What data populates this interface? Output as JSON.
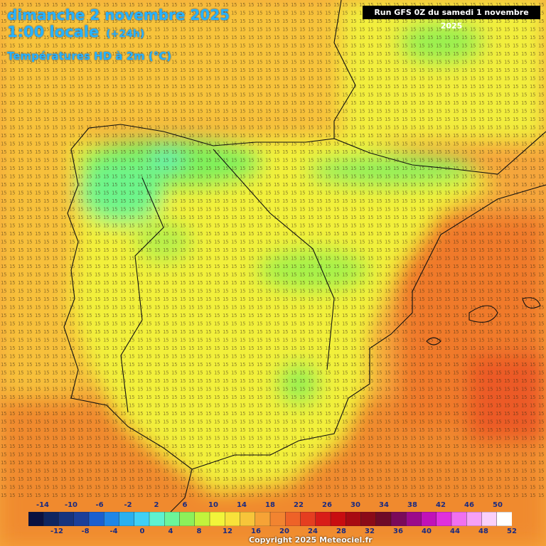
{
  "header": {
    "line1": "dimanche 2 novembre 2025",
    "line2": "1:00 locale",
    "line2_tag": "(+24h)",
    "line3": "Températures HD à 2m (°C)"
  },
  "run_info": "Run GFS 0Z du samedi 1 novembre 2025",
  "copyright": "Copyright 2025 Meteociel.fr",
  "map": {
    "region": "Iberian Peninsula",
    "unit": "°C",
    "grid_values_note_sample": [
      "15",
      "16",
      "17",
      "18",
      "19",
      "20",
      "21",
      "22"
    ]
  },
  "legend": {
    "top_labels": [
      "-14",
      "-10",
      "-6",
      "-2",
      "2",
      "6",
      "10",
      "14",
      "18",
      "22",
      "26",
      "30",
      "34",
      "38",
      "42",
      "46",
      "50"
    ],
    "bottom_labels": [
      "-12",
      "-8",
      "-4",
      "0",
      "4",
      "8",
      "12",
      "16",
      "20",
      "24",
      "28",
      "32",
      "36",
      "40",
      "44",
      "48",
      "52"
    ],
    "colors": [
      "#0a1140",
      "#0e2560",
      "#17337d",
      "#1c3f99",
      "#1a5fcf",
      "#1f86e6",
      "#2ab0ef",
      "#40d0f5",
      "#5ef2d0",
      "#6cf59a",
      "#8df05a",
      "#c2f33c",
      "#f2f53a",
      "#f8e23a",
      "#f7c53a",
      "#f6a336",
      "#f28430",
      "#ee6228",
      "#e53e20",
      "#d81d18",
      "#c80d10",
      "#a80a12",
      "#8a0a18",
      "#6e0a28",
      "#7a0a5a",
      "#9b0a8a",
      "#c012b8",
      "#e030dc",
      "#f070f0",
      "#f6a0f6",
      "#fad0fa",
      "#ffffff"
    ]
  }
}
